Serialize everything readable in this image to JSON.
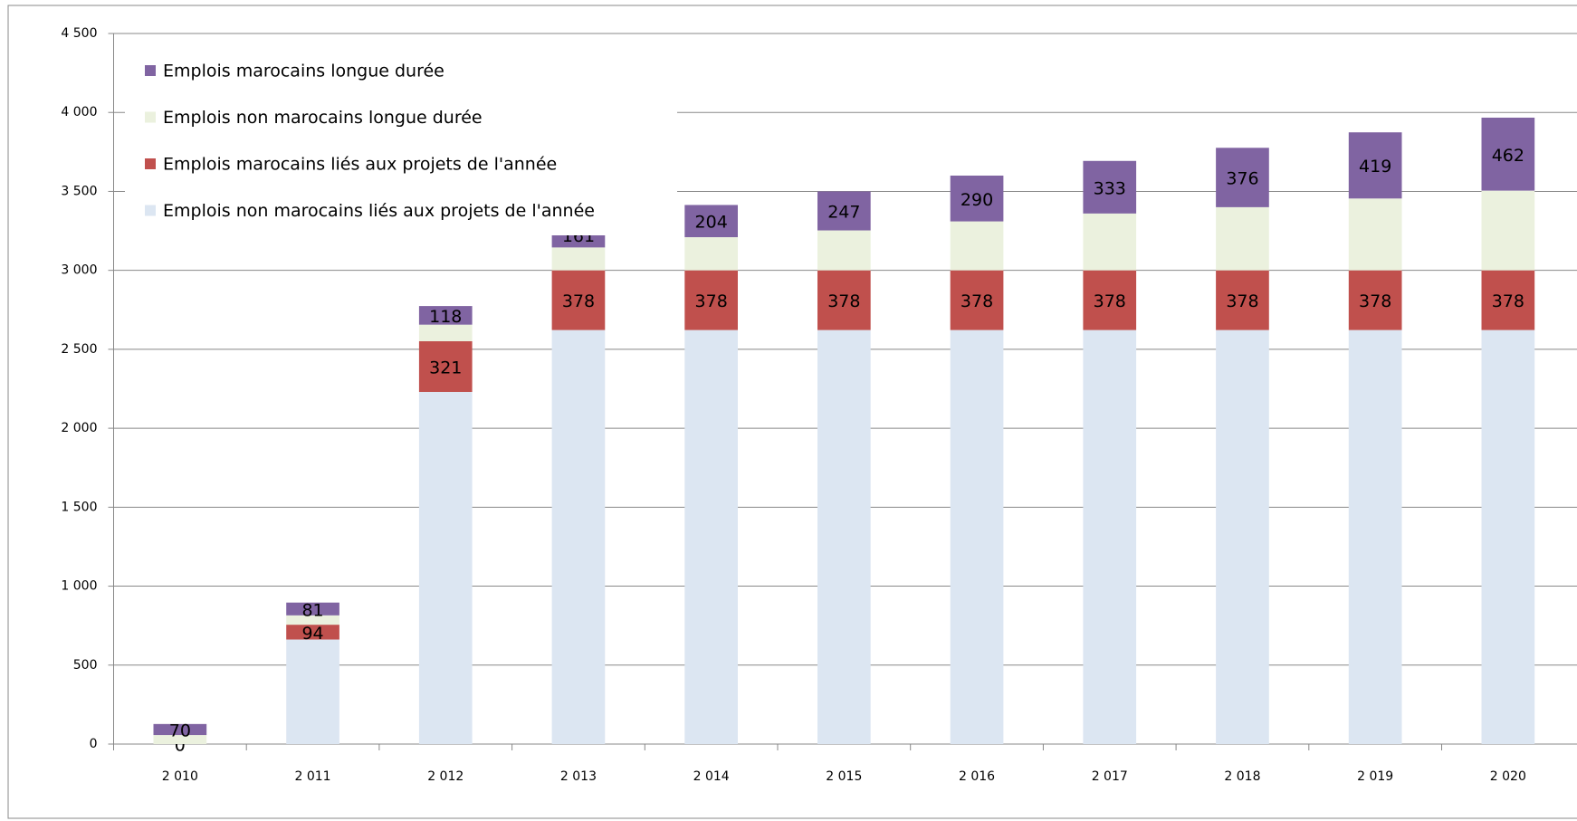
{
  "chart_data": {
    "type": "bar",
    "stacked": true,
    "categories": [
      "2 010",
      "2 011",
      "2 012",
      "2 013",
      "2 014",
      "2 015",
      "2 016",
      "2 017",
      "2 018",
      "2 019",
      "2 020"
    ],
    "series": [
      {
        "name": "Emplois non marocains liés aux projets de l'année",
        "color": "#dce6f2",
        "data_labels": false,
        "values": [
          0,
          662,
          2230,
          2622,
          2622,
          2622,
          2622,
          2622,
          2622,
          2622,
          2622
        ]
      },
      {
        "name": "Emplois marocains liés aux projets de l'année",
        "color": "#c0504d",
        "data_labels": true,
        "values": [
          0,
          94,
          321,
          378,
          378,
          378,
          378,
          378,
          378,
          378,
          378
        ]
      },
      {
        "name": "Emplois non marocains longue durée",
        "color": "#ebf1de",
        "data_labels": false,
        "values": [
          57,
          59,
          105,
          145,
          210,
          253,
          310,
          360,
          400,
          455,
          505
        ]
      },
      {
        "name": "Emplois marocains longue durée",
        "color": "#8064a2",
        "data_labels": true,
        "values": [
          70,
          81,
          118,
          161,
          204,
          247,
          290,
          333,
          376,
          419,
          462
        ]
      }
    ],
    "ylim": [
      0,
      4500
    ],
    "yticks": [
      0,
      500,
      {
        "value": 1000,
        "label": "1 000"
      },
      {
        "value": 1500,
        "label": "1 500"
      },
      {
        "value": 2000,
        "label": "2 000"
      },
      {
        "value": 2500,
        "label": "2 500"
      },
      {
        "value": 3000,
        "label": "3 000"
      },
      {
        "value": 3500,
        "label": "3 500"
      },
      {
        "value": 4000,
        "label": "4 000"
      },
      {
        "value": 4500,
        "label": "4 500"
      }
    ],
    "grid": true,
    "legend": "top-left"
  }
}
